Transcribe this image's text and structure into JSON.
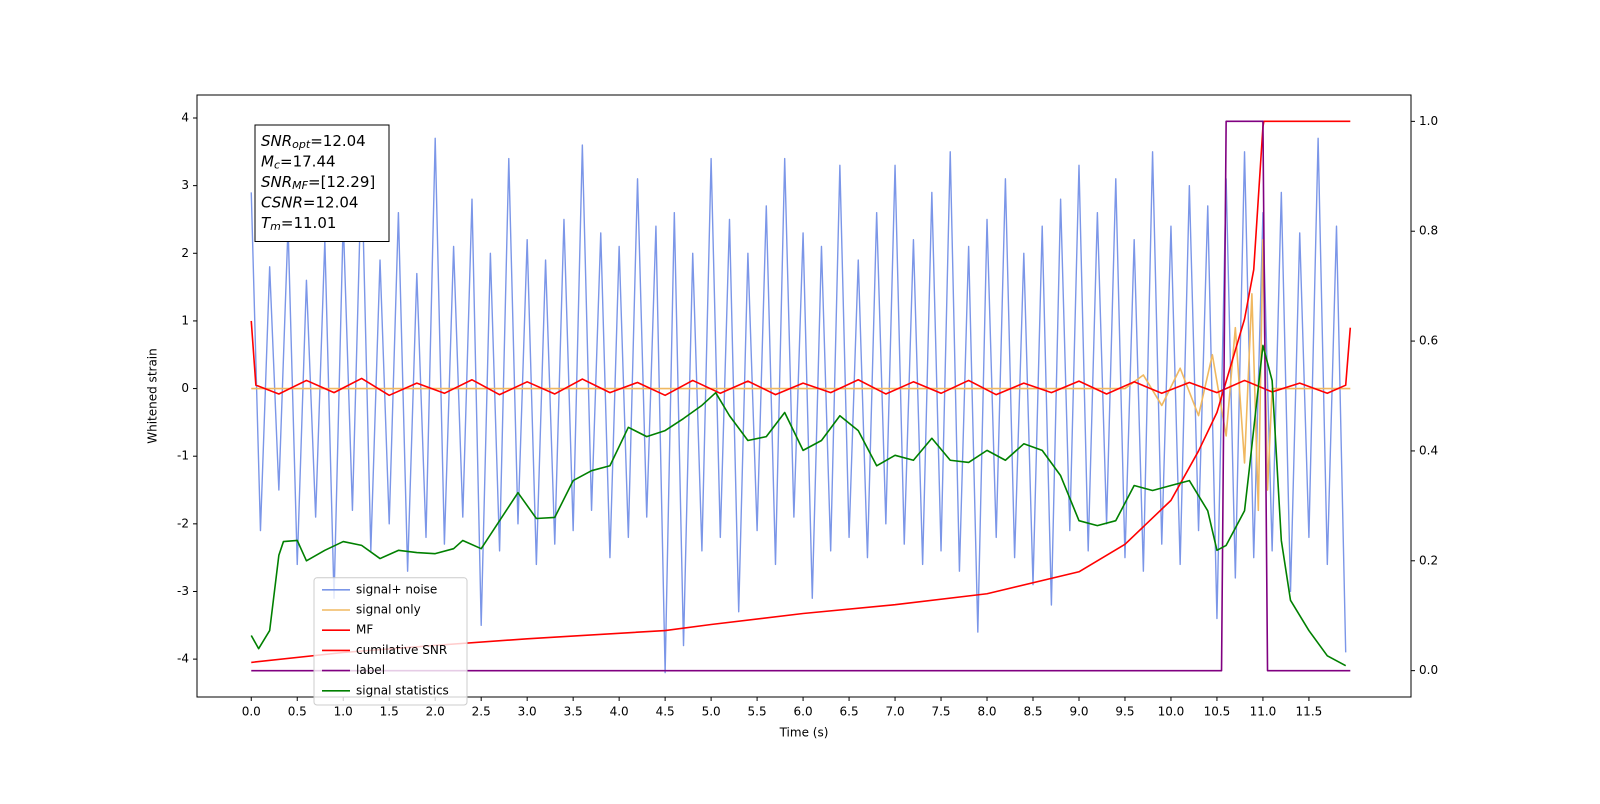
{
  "chart_data": {
    "type": "line",
    "xlabel": "Time (s)",
    "ylabel": "Whitened strain",
    "xlim": [
      -0.59,
      12.61
    ],
    "ylim": [
      -4.56,
      4.34
    ],
    "y2lim": [
      -0.048,
      1.048
    ],
    "xticks": [
      {
        "value": 0,
        "label": "0.0"
      },
      {
        "value": 0.5,
        "label": "0.5"
      },
      {
        "value": 1,
        "label": "1.0"
      },
      {
        "value": 1.5,
        "label": "1.5"
      },
      {
        "value": 2,
        "label": "2.0"
      },
      {
        "value": 2.5,
        "label": "2.5"
      },
      {
        "value": 3,
        "label": "3.0"
      },
      {
        "value": 3.5,
        "label": "3.5"
      },
      {
        "value": 4,
        "label": "4.0"
      },
      {
        "value": 4.5,
        "label": "4.5"
      },
      {
        "value": 5,
        "label": "5.0"
      },
      {
        "value": 5.5,
        "label": "5.5"
      },
      {
        "value": 6,
        "label": "6.0"
      },
      {
        "value": 6.5,
        "label": "6.5"
      },
      {
        "value": 7,
        "label": "7.0"
      },
      {
        "value": 7.5,
        "label": "7.5"
      },
      {
        "value": 8,
        "label": "8.0"
      },
      {
        "value": 8.5,
        "label": "8.5"
      },
      {
        "value": 9,
        "label": "9.0"
      },
      {
        "value": 9.5,
        "label": "9.5"
      },
      {
        "value": 10,
        "label": "10.0"
      },
      {
        "value": 10.5,
        "label": "10.5"
      },
      {
        "value": 11,
        "label": "11.0"
      },
      {
        "value": 11.5,
        "label": "11.5"
      }
    ],
    "yticks": [
      -4,
      -3,
      -2,
      -1,
      0,
      1,
      2,
      3,
      4
    ],
    "y2ticks": [
      {
        "value": 0,
        "label": "0.0"
      },
      {
        "value": 0.2,
        "label": "0.2"
      },
      {
        "value": 0.4,
        "label": "0.4"
      },
      {
        "value": 0.6,
        "label": "0.6"
      },
      {
        "value": 0.8,
        "label": "0.8"
      },
      {
        "value": 1,
        "label": "1.0"
      }
    ],
    "legend": "lower left",
    "annotations": [
      {
        "name": "SNR",
        "sub": "opt",
        "text": "=12.04"
      },
      {
        "name": "M",
        "sub": "c",
        "text": "=17.44"
      },
      {
        "name": "SNR",
        "sub": "MF",
        "text": "=[12.29]"
      },
      {
        "name": "CSNR",
        "text": "=12.04"
      },
      {
        "name": "T",
        "sub": "m",
        "text": "=11.01"
      }
    ],
    "series": [
      {
        "name": "signal+ noise",
        "color": "#7b96e8",
        "x": [
          0,
          0.1,
          0.2,
          0.3,
          0.4,
          0.5,
          0.6,
          0.7,
          0.8,
          0.9,
          1,
          1.1,
          1.2,
          1.3,
          1.4,
          1.5,
          1.6,
          1.7,
          1.8,
          1.9,
          2,
          2.1,
          2.2,
          2.3,
          2.4,
          2.5,
          2.6,
          2.7,
          2.8,
          2.9,
          3,
          3.1,
          3.2,
          3.3,
          3.4,
          3.5,
          3.6,
          3.7,
          3.8,
          3.9,
          4,
          4.1,
          4.2,
          4.3,
          4.4,
          4.5,
          4.6,
          4.7,
          4.8,
          4.9,
          5,
          5.1,
          5.2,
          5.3,
          5.4,
          5.5,
          5.6,
          5.7,
          5.8,
          5.9,
          6,
          6.1,
          6.2,
          6.3,
          6.4,
          6.5,
          6.6,
          6.7,
          6.8,
          6.9,
          7,
          7.1,
          7.2,
          7.3,
          7.4,
          7.5,
          7.6,
          7.7,
          7.8,
          7.9,
          8,
          8.1,
          8.2,
          8.3,
          8.4,
          8.5,
          8.6,
          8.7,
          8.8,
          8.9,
          9,
          9.1,
          9.2,
          9.3,
          9.4,
          9.5,
          9.6,
          9.7,
          9.8,
          9.9,
          10,
          10.1,
          10.2,
          10.3,
          10.4,
          10.5,
          10.6,
          10.7,
          10.8,
          10.9,
          11,
          11.1,
          11.2,
          11.3,
          11.4,
          11.5,
          11.6,
          11.7,
          11.8,
          11.9
        ],
        "values": [
          2.9,
          -2.1,
          1.8,
          -1.5,
          2.4,
          -2.6,
          1.6,
          -1.9,
          2.2,
          -3.1,
          2.5,
          -1.8,
          3.3,
          -2.4,
          1.9,
          -2.0,
          2.6,
          -2.7,
          1.7,
          -2.2,
          3.7,
          -2.3,
          2.1,
          -1.9,
          2.8,
          -3.5,
          2.0,
          -2.4,
          3.4,
          -2.0,
          2.2,
          -2.6,
          1.9,
          -2.3,
          2.5,
          -2.1,
          3.6,
          -1.8,
          2.3,
          -2.5,
          2.1,
          -2.2,
          3.1,
          -1.9,
          2.4,
          -4.2,
          2.6,
          -3.8,
          2.0,
          -2.4,
          3.4,
          -2.2,
          2.5,
          -3.3,
          2.0,
          -2.1,
          2.7,
          -2.6,
          3.4,
          -1.9,
          2.3,
          -3.1,
          2.1,
          -2.4,
          3.3,
          -2.2,
          1.9,
          -2.5,
          2.6,
          -2.0,
          3.3,
          -2.3,
          2.2,
          -2.6,
          2.9,
          -2.4,
          3.5,
          -2.7,
          2.1,
          -3.6,
          2.5,
          -2.2,
          3.1,
          -2.5,
          2.0,
          -2.9,
          2.4,
          -3.2,
          2.8,
          -2.1,
          3.3,
          -2.4,
          2.6,
          -2.0,
          3.1,
          -2.5,
          2.2,
          -2.7,
          3.5,
          -2.3,
          2.4,
          -2.6,
          3.0,
          -2.1,
          2.7,
          -3.4,
          3.1,
          -2.8,
          3.5,
          -2.5,
          2.6,
          -2.4,
          2.9,
          -3.0,
          2.3,
          -2.2,
          3.7,
          -2.6,
          2.4,
          -3.9
        ]
      },
      {
        "name": "signal only",
        "color": "#f0b860",
        "x": [
          0,
          9.5,
          9.7,
          9.9,
          10.1,
          10.3,
          10.45,
          10.6,
          10.7,
          10.8,
          10.88,
          10.95,
          11.0,
          11.05,
          11.1,
          11.95
        ],
        "values": [
          0,
          0,
          0.2,
          -0.25,
          0.3,
          -0.4,
          0.5,
          -0.7,
          0.9,
          -1.1,
          1.4,
          -1.8,
          2.2,
          -1.5,
          0,
          0
        ]
      },
      {
        "name": "MF",
        "color": "#ff0000",
        "x": [
          0,
          0.05,
          0.3,
          0.6,
          0.9,
          1.2,
          1.5,
          1.8,
          2.1,
          2.4,
          2.7,
          3,
          3.3,
          3.6,
          3.9,
          4.2,
          4.5,
          4.8,
          5.1,
          5.4,
          5.7,
          6,
          6.3,
          6.6,
          6.9,
          7.2,
          7.5,
          7.8,
          8.1,
          8.4,
          8.7,
          9,
          9.3,
          9.6,
          9.9,
          10.2,
          10.5,
          10.8,
          11.1,
          11.4,
          11.7,
          11.9,
          11.95
        ],
        "values": [
          1.0,
          0.05,
          -0.08,
          0.12,
          -0.06,
          0.15,
          -0.1,
          0.08,
          -0.07,
          0.13,
          -0.09,
          0.1,
          -0.08,
          0.14,
          -0.06,
          0.09,
          -0.1,
          0.12,
          -0.07,
          0.11,
          -0.09,
          0.08,
          -0.06,
          0.13,
          -0.08,
          0.1,
          -0.07,
          0.12,
          -0.09,
          0.08,
          -0.06,
          0.11,
          -0.08,
          0.1,
          -0.07,
          0.09,
          -0.06,
          0.12,
          -0.05,
          0.08,
          -0.07,
          0.05,
          0.9
        ]
      },
      {
        "name": "cumilative SNR",
        "color": "#ff0000",
        "axis": "y2",
        "x": [
          0,
          1,
          2,
          3,
          4.5,
          5,
          6,
          7,
          8,
          9,
          9.5,
          10,
          10.3,
          10.5,
          10.8,
          10.9,
          10.95,
          11.0,
          11.01,
          11.95
        ],
        "values": [
          0.015,
          0.033,
          0.046,
          0.058,
          0.073,
          0.084,
          0.104,
          0.12,
          0.14,
          0.18,
          0.23,
          0.31,
          0.4,
          0.47,
          0.64,
          0.73,
          0.86,
          0.99,
          1.0,
          1.0
        ]
      },
      {
        "name": "label",
        "color": "#800080",
        "axis": "y2",
        "x": [
          0,
          10.55,
          10.6,
          11.0,
          11.05,
          11.95
        ],
        "values": [
          0,
          0,
          1,
          1,
          0,
          0
        ]
      },
      {
        "name": "signal statistics",
        "color": "#008000",
        "axis": "y2",
        "x": [
          0,
          0.08,
          0.2,
          0.3,
          0.35,
          0.5,
          0.6,
          0.8,
          1.0,
          1.2,
          1.4,
          1.6,
          1.8,
          2.0,
          2.2,
          2.3,
          2.5,
          2.7,
          2.9,
          3.1,
          3.3,
          3.5,
          3.7,
          3.9,
          4.1,
          4.3,
          4.5,
          4.7,
          4.9,
          5.05,
          5.2,
          5.4,
          5.6,
          5.8,
          6.0,
          6.2,
          6.4,
          6.6,
          6.8,
          7.0,
          7.2,
          7.4,
          7.6,
          7.8,
          8.0,
          8.2,
          8.4,
          8.6,
          8.8,
          9.0,
          9.2,
          9.4,
          9.6,
          9.8,
          10.0,
          10.2,
          10.4,
          10.5,
          10.6,
          10.8,
          10.85,
          11.0,
          11.1,
          11.2,
          11.3,
          11.5,
          11.7,
          11.9
        ],
        "values": [
          0.064,
          0.04,
          0.073,
          0.21,
          0.235,
          0.237,
          0.2,
          0.219,
          0.235,
          0.228,
          0.204,
          0.219,
          0.215,
          0.213,
          0.222,
          0.237,
          0.222,
          0.273,
          0.324,
          0.277,
          0.279,
          0.346,
          0.364,
          0.373,
          0.443,
          0.426,
          0.437,
          0.459,
          0.483,
          0.506,
          0.464,
          0.419,
          0.426,
          0.47,
          0.401,
          0.419,
          0.464,
          0.437,
          0.373,
          0.392,
          0.383,
          0.423,
          0.383,
          0.379,
          0.401,
          0.383,
          0.413,
          0.401,
          0.355,
          0.273,
          0.264,
          0.273,
          0.337,
          0.328,
          0.337,
          0.346,
          0.291,
          0.219,
          0.228,
          0.291,
          0.364,
          0.592,
          0.528,
          0.237,
          0.128,
          0.073,
          0.027,
          0.009
        ]
      }
    ]
  }
}
